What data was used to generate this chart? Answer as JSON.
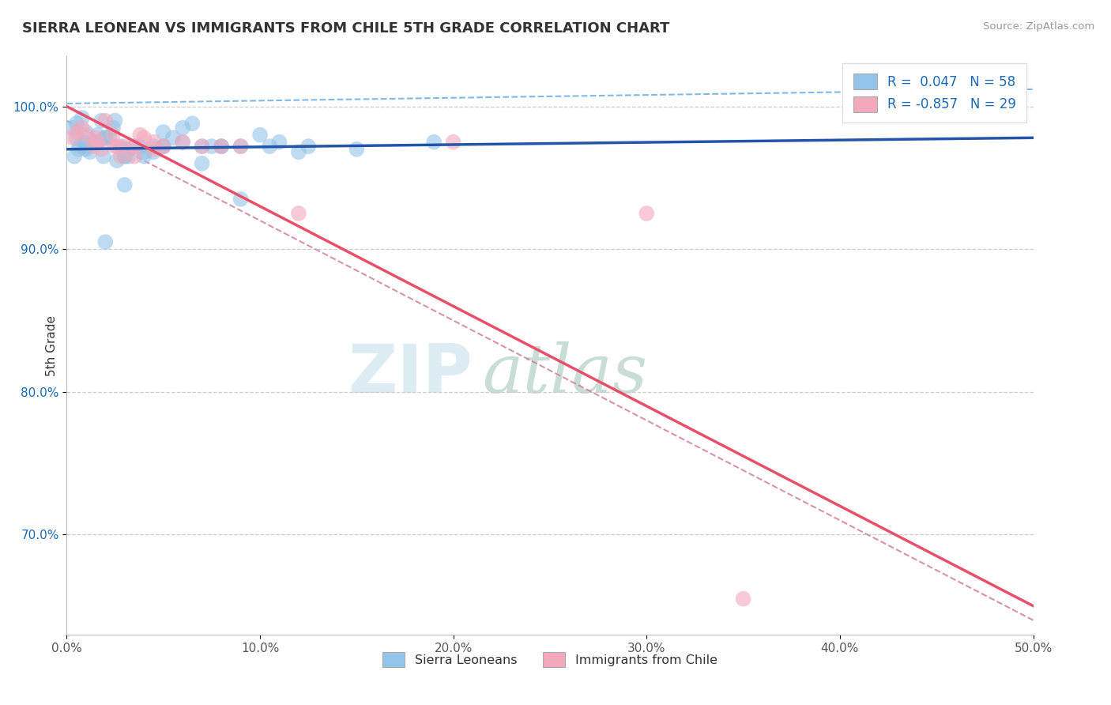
{
  "title": "SIERRA LEONEAN VS IMMIGRANTS FROM CHILE 5TH GRADE CORRELATION CHART",
  "source": "Source: ZipAtlas.com",
  "ylabel": "5th Grade",
  "xlim": [
    0.0,
    50.0
  ],
  "ylim": [
    63.0,
    103.5
  ],
  "yticks": [
    70.0,
    80.0,
    90.0,
    100.0
  ],
  "ytick_labels": [
    "70.0%",
    "80.0%",
    "90.0%",
    "100.0%"
  ],
  "xticks": [
    0.0,
    10.0,
    20.0,
    30.0,
    40.0,
    50.0
  ],
  "xtick_labels": [
    "0.0%",
    "10.0%",
    "20.0%",
    "30.0%",
    "40.0%",
    "50.0%"
  ],
  "blue_R": "0.047",
  "blue_N": "58",
  "pink_R": "-0.857",
  "pink_N": "29",
  "blue_color": "#93C3E8",
  "pink_color": "#F4A8BC",
  "blue_line_color": "#2255AA",
  "pink_line_color": "#E8506A",
  "watermark_zip": "ZIP",
  "watermark_atlas": "atlas",
  "legend_color": "#1a6ab5",
  "blue_scatter_x": [
    0.3,
    0.5,
    0.7,
    0.8,
    0.9,
    1.0,
    1.2,
    1.4,
    1.5,
    1.6,
    1.8,
    1.9,
    2.0,
    2.2,
    2.4,
    2.5,
    2.6,
    2.8,
    3.0,
    3.0,
    3.2,
    3.5,
    3.8,
    4.0,
    4.5,
    5.0,
    5.5,
    6.0,
    6.0,
    6.5,
    7.0,
    7.5,
    8.0,
    9.0,
    10.0,
    11.0,
    12.0,
    15.0,
    19.0,
    0.4,
    0.6,
    1.0,
    1.6,
    2.0,
    3.0,
    4.0,
    4.5,
    5.0,
    7.0,
    8.0,
    9.0,
    10.5,
    12.5,
    0.5,
    1.0,
    2.0,
    3.0,
    5.0
  ],
  "blue_scatter_y": [
    98.5,
    97.8,
    97.2,
    99.2,
    97.5,
    98.2,
    96.8,
    97.5,
    97.5,
    98.0,
    99.0,
    96.5,
    97.8,
    97.8,
    98.5,
    99.0,
    96.2,
    97.2,
    97.0,
    94.5,
    96.5,
    97.2,
    97.2,
    96.5,
    97.2,
    98.2,
    97.8,
    98.5,
    97.5,
    98.8,
    96.0,
    97.2,
    97.2,
    93.5,
    98.0,
    97.5,
    96.8,
    97.0,
    97.5,
    96.5,
    97.0,
    97.0,
    97.5,
    90.5,
    96.5,
    96.8,
    96.8,
    97.2,
    97.2,
    97.2,
    97.2,
    97.2,
    97.2,
    98.8,
    97.2,
    97.8,
    96.5,
    97.2
  ],
  "pink_scatter_x": [
    0.3,
    0.5,
    0.8,
    1.0,
    1.4,
    1.5,
    1.6,
    1.8,
    2.0,
    2.4,
    2.5,
    2.6,
    2.8,
    3.0,
    3.5,
    3.5,
    3.8,
    4.0,
    4.5,
    4.5,
    5.0,
    6.0,
    8.0,
    9.0,
    12.0,
    20.0,
    30.0,
    35.0,
    7.0
  ],
  "pink_scatter_y": [
    97.8,
    98.2,
    98.5,
    98.0,
    97.2,
    97.8,
    97.5,
    97.0,
    99.0,
    98.0,
    97.2,
    97.2,
    96.5,
    97.2,
    97.2,
    96.5,
    98.0,
    97.8,
    97.5,
    97.0,
    97.2,
    97.5,
    97.2,
    97.2,
    92.5,
    97.5,
    92.5,
    65.5,
    97.2
  ],
  "blue_trend_x0": 0.0,
  "blue_trend_x1": 50.0,
  "blue_trend_y0": 97.0,
  "blue_trend_y1": 97.8,
  "blue_dash_x0": 0.0,
  "blue_dash_x1": 50.0,
  "blue_dash_y0": 100.2,
  "blue_dash_y1": 101.2,
  "pink_trend_x0": 0.0,
  "pink_trend_x1": 50.0,
  "pink_trend_y0": 100.0,
  "pink_trend_y1": 65.0,
  "pink_dash_x0": 0.0,
  "pink_dash_x1": 50.0,
  "pink_dash_y0": 99.0,
  "pink_dash_y1": 64.0
}
